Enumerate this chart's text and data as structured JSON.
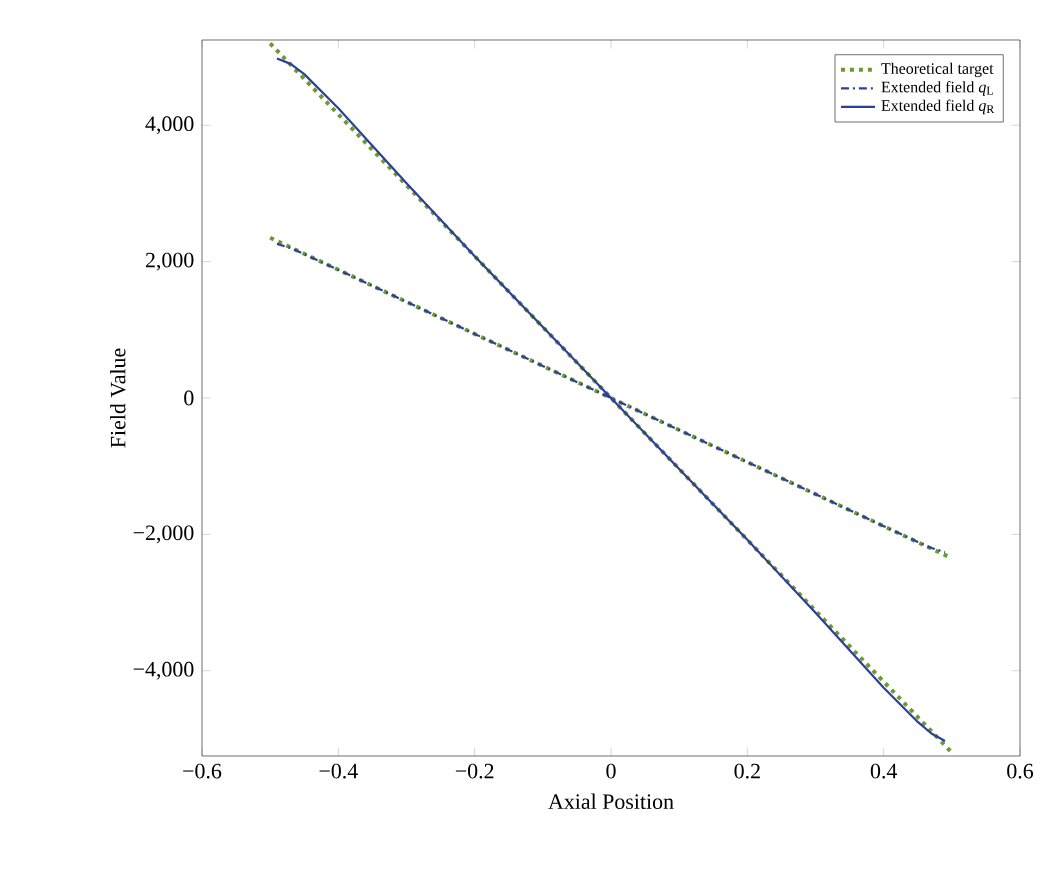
{
  "chart_data": {
    "type": "line",
    "xlabel": "Axial Position",
    "ylabel": "Field Value",
    "xlim": [
      -0.6,
      0.6
    ],
    "ylim": [
      -5250,
      5250
    ],
    "xticks": [
      {
        "value": -0.6,
        "label": "−0.6"
      },
      {
        "value": -0.4,
        "label": "−0.4"
      },
      {
        "value": -0.2,
        "label": "−0.2"
      },
      0,
      0.2,
      0.4,
      0.6
    ],
    "yticks": [
      {
        "value": -4000,
        "label": "−4,000"
      },
      {
        "value": -2000,
        "label": "−2,000"
      },
      0,
      {
        "value": 2000,
        "label": "2,000"
      },
      {
        "value": 4000,
        "label": "4,000"
      }
    ],
    "legend": "top right",
    "grid": false,
    "series": [
      {
        "name": "Theoretical target",
        "color": "#6b9a2e",
        "line_style": "dotted",
        "x": [
          -0.5,
          -0.4,
          -0.3,
          -0.2,
          -0.1,
          0,
          0.1,
          0.2,
          0.3,
          0.4,
          0.5,
          null,
          -0.5,
          -0.4,
          -0.3,
          -0.2,
          -0.1,
          0,
          0.1,
          0.2,
          0.3,
          0.4,
          0.5
        ],
        "values": [
          5200,
          4160,
          3120,
          2080,
          1040,
          0,
          -1040,
          -2080,
          -3120,
          -4160,
          -5200,
          null,
          2350,
          1880,
          1410,
          940,
          470,
          0,
          -470,
          -940,
          -1410,
          -1880,
          -2350
        ]
      },
      {
        "name": "Extended field *q*$_{L}$",
        "color": "#2e3f99",
        "line_style": "dashdot",
        "x": [
          -0.49,
          -0.47,
          -0.45,
          -0.4,
          -0.3,
          -0.2,
          -0.1,
          0,
          0.1,
          0.2,
          0.3,
          0.4,
          0.45,
          0.47,
          0.49
        ],
        "values": [
          2260,
          2200,
          2110,
          1880,
          1410,
          940,
          470,
          0,
          -470,
          -940,
          -1410,
          -1880,
          -2110,
          -2200,
          -2260
        ]
      },
      {
        "name": "Extended field *q*$_{R}$",
        "color": "#2e3f99",
        "line_style": "solid",
        "x": [
          -0.49,
          -0.47,
          -0.45,
          -0.4,
          -0.3,
          -0.2,
          -0.1,
          0,
          0.1,
          0.2,
          0.3,
          0.4,
          0.45,
          0.47,
          0.49
        ],
        "values": [
          4980,
          4900,
          4750,
          4250,
          3150,
          2080,
          1040,
          0,
          -1040,
          -2080,
          -3150,
          -4250,
          -4750,
          -4920,
          -5030
        ]
      }
    ]
  }
}
